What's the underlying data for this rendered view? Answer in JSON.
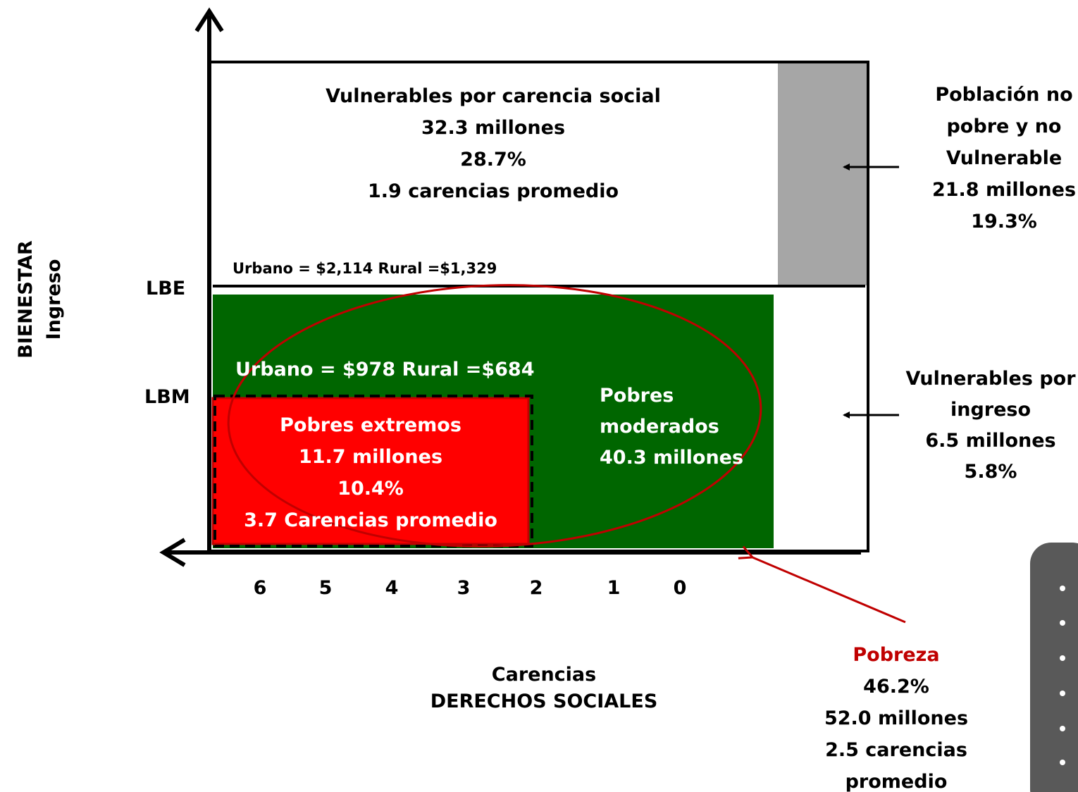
{
  "y_axis": {
    "title": "BIENESTAR",
    "subtitle": "Ingreso"
  },
  "x_axis": {
    "title": "Carencias",
    "subtitle": "DERECHOS SOCIALES",
    "ticks": [
      "6",
      "5",
      "4",
      "3",
      "2",
      "1",
      "0"
    ]
  },
  "thresholds": {
    "lbe": {
      "label": "LBE",
      "text": "Urbano = $2,114 Rural =$1,329"
    },
    "lbm": {
      "label": "LBM",
      "text": "Urbano = $978 Rural =$684"
    }
  },
  "regions": {
    "vulnerables_carencia": [
      "Vulnerables por carencia social",
      "32.3 millones",
      "28.7%",
      "1.9 carencias promedio"
    ],
    "no_pobre": [
      "Población no",
      "pobre y no",
      "Vulnerable",
      "21.8 millones",
      "19.3%"
    ],
    "vulnerables_ingreso": [
      "Vulnerables por",
      "ingreso",
      "6.5 millones",
      "5.8%"
    ],
    "pobres_moderados": [
      "Pobres",
      "moderados",
      "40.3 millones"
    ],
    "pobres_extremos": [
      "Pobres extremos",
      "11.7 millones",
      "10.4%",
      "3.7 Carencias promedio"
    ],
    "pobreza": {
      "title": "Pobreza",
      "lines": [
        "46.2%",
        "52.0 millones",
        "2.5 carencias",
        "promedio"
      ]
    }
  }
}
